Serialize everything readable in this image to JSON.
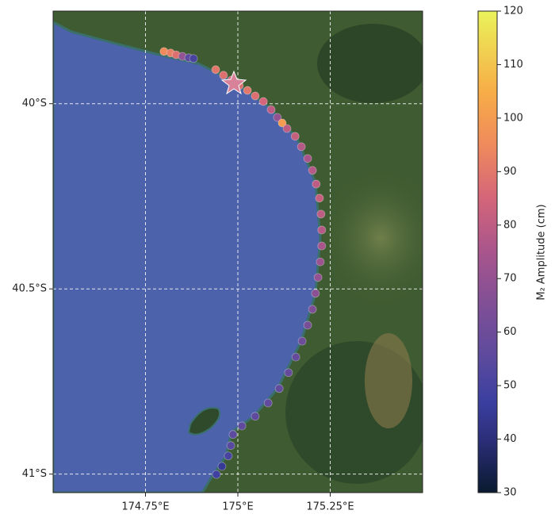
{
  "chart_data": {
    "type": "scatter",
    "xlim": [
      174.5,
      175.5
    ],
    "ylim": [
      -41.05,
      -39.75
    ],
    "xticks": [
      {
        "value": 174.75,
        "label": "174.75°E"
      },
      {
        "value": 175,
        "label": "175°E"
      },
      {
        "value": 175.25,
        "label": "175.25°E"
      }
    ],
    "yticks": [
      {
        "value": -40,
        "label": "40°S"
      },
      {
        "value": -40.5,
        "label": "40.5°S"
      },
      {
        "value": -41,
        "label": "41°S"
      }
    ],
    "grid": true,
    "x": [
      174.8,
      174.818,
      174.833,
      174.85,
      174.867,
      174.88,
      174.94,
      174.961,
      174.983,
      175.004,
      175.026,
      175.047,
      175.069,
      175.09,
      175.107,
      175.12,
      175.133,
      175.155,
      175.172,
      175.189,
      175.202,
      175.212,
      175.221,
      175.225,
      175.227,
      175.227,
      175.223,
      175.217,
      175.21,
      175.202,
      175.189,
      175.174,
      175.157,
      175.137,
      175.112,
      175.082,
      175.047,
      175.011,
      174.987,
      174.981,
      174.974,
      174.957,
      174.942
    ],
    "values": [
      -39.859,
      -39.863,
      -39.868,
      -39.872,
      -39.876,
      -39.878,
      -39.908,
      -39.923,
      -39.936,
      -39.951,
      -39.964,
      -39.979,
      -39.994,
      -40.016,
      -40.037,
      -40.052,
      -40.067,
      -40.088,
      -40.116,
      -40.148,
      -40.18,
      -40.217,
      -40.255,
      -40.298,
      -40.341,
      -40.384,
      -40.427,
      -40.469,
      -40.512,
      -40.555,
      -40.598,
      -40.641,
      -40.684,
      -40.726,
      -40.769,
      -40.808,
      -40.844,
      -40.87,
      -40.893,
      -40.923,
      -40.951,
      -40.979,
      -41.001
    ],
    "amplitude": [
      95,
      92,
      88,
      70,
      55,
      50,
      90,
      88,
      85,
      88,
      90,
      88,
      85,
      80,
      70,
      100,
      80,
      82,
      78,
      75,
      78,
      80,
      82,
      80,
      78,
      75,
      72,
      70,
      68,
      65,
      63,
      60,
      58,
      58,
      57,
      57,
      56,
      56,
      55,
      54,
      50,
      45,
      48
    ],
    "colorbar": {
      "label": "M₂ Amplitude (cm)",
      "lim": [
        30,
        120
      ],
      "ticks": [
        30,
        40,
        50,
        60,
        70,
        80,
        90,
        100,
        110,
        120
      ]
    }
  }
}
